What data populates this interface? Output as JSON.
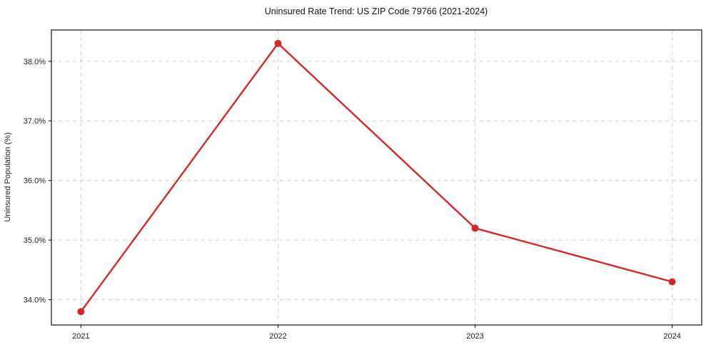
{
  "chart_data": {
    "type": "line",
    "title": "Uninsured Rate Trend: US ZIP Code 79766 (2021-2024)",
    "xlabel": "",
    "ylabel": "Uninsured Population (%)",
    "x": [
      2021,
      2022,
      2023,
      2024
    ],
    "x_tick_labels": [
      "2021",
      "2022",
      "2023",
      "2024"
    ],
    "series": [
      {
        "name": "uninsured-rate",
        "values": [
          33.8,
          38.3,
          35.2,
          34.3
        ],
        "color": "#d62728",
        "marker": "circle"
      }
    ],
    "y_ticks": [
      34.0,
      35.0,
      36.0,
      37.0,
      38.0
    ],
    "y_tick_labels": [
      "34.0%",
      "35.0%",
      "36.0%",
      "37.0%",
      "38.0%"
    ],
    "xlim": [
      2020.85,
      2024.15
    ],
    "ylim": [
      33.575,
      38.525
    ],
    "grid": true,
    "grid_color": "#cccccc",
    "spine_color": "#222222",
    "background": "#ffffff",
    "legend_position": "none"
  }
}
